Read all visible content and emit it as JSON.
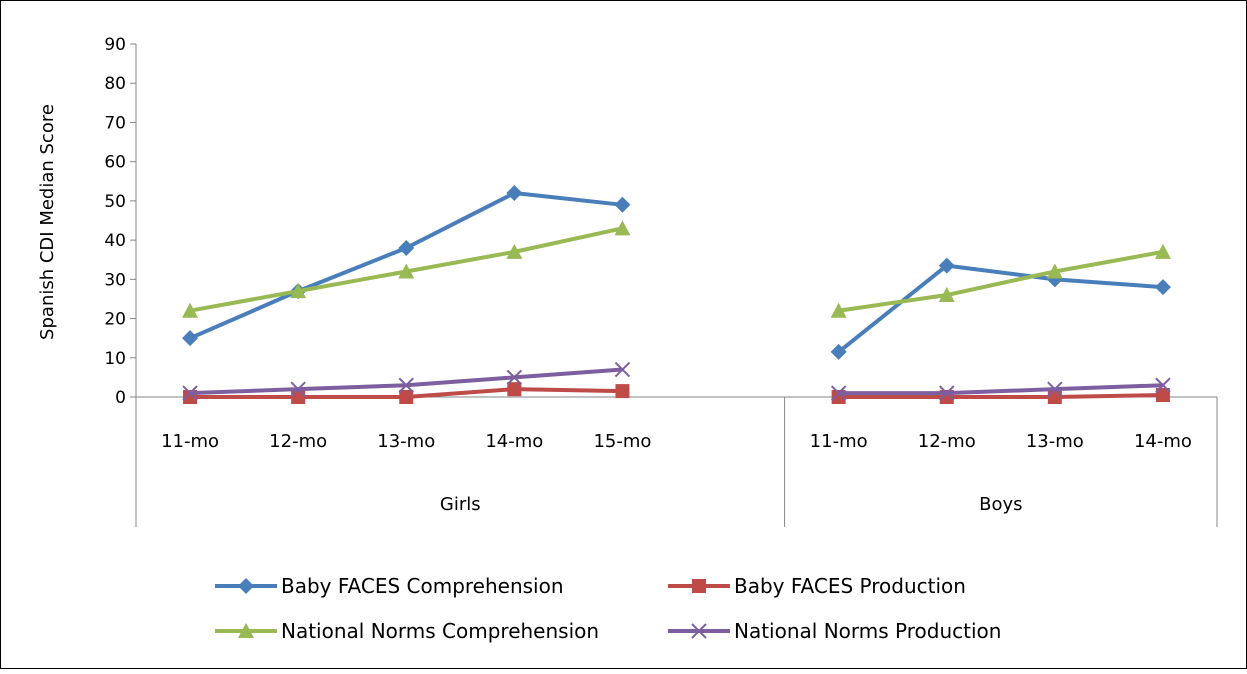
{
  "chart_data": {
    "type": "line",
    "title": "",
    "ylabel": "Spanish CDI Median Score",
    "xlabel": "",
    "ylim": [
      0,
      90
    ],
    "yticks": [
      0,
      10,
      20,
      30,
      40,
      50,
      60,
      70,
      80,
      90
    ],
    "grid": false,
    "legend_position": "bottom",
    "groups": [
      {
        "label": "Girls",
        "categories": [
          "11-mo",
          "12-mo",
          "13-mo",
          "14-mo",
          "15-mo"
        ]
      },
      {
        "label": "Boys",
        "categories": [
          "11-mo",
          "12-mo",
          "13-mo",
          "14-mo"
        ]
      }
    ],
    "series": [
      {
        "name": "Baby FACES Comprehension",
        "color": "#4a7ebb",
        "marker": "diamond",
        "values": [
          [
            15,
            27,
            38,
            52,
            49
          ],
          [
            11.5,
            33.5,
            30,
            28
          ]
        ]
      },
      {
        "name": "Baby FACES Production",
        "color": "#be4b48",
        "marker": "square",
        "values": [
          [
            0,
            0,
            0,
            2,
            1.5
          ],
          [
            0,
            0,
            0,
            0.5
          ]
        ]
      },
      {
        "name": "National Norms Comprehension",
        "color": "#98b954",
        "marker": "triangle",
        "values": [
          [
            22,
            27,
            32,
            37,
            43
          ],
          [
            22,
            26,
            32,
            37
          ]
        ]
      },
      {
        "name": "National Norms Production",
        "color": "#7d5fa0",
        "marker": "x",
        "values": [
          [
            1,
            2,
            3,
            5,
            7
          ],
          [
            1,
            1,
            2,
            3
          ]
        ]
      }
    ]
  }
}
